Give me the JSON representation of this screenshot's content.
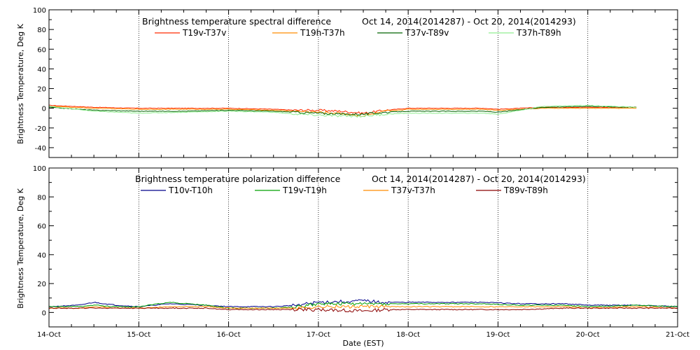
{
  "chart_data": [
    {
      "type": "line",
      "title": "Brightness temperature spectral difference",
      "date_range": "Oct 14, 2014(2014287) - Oct 20, 2014(2014293)",
      "ylabel": "Brightness Temperature, Deg K",
      "xlabel": "",
      "ylim": [
        -50,
        100
      ],
      "yticks": [
        -40,
        -20,
        0,
        20,
        40,
        60,
        80,
        100
      ],
      "xlim": [
        "2014-10-14",
        "2014-10-21"
      ],
      "grid": "vertical dotted lines at day boundaries",
      "legend_position": "top",
      "series": [
        {
          "name": "T19v-T37v",
          "color": "#ff2a00",
          "x": [
            "2014-10-14T00:00",
            "2014-10-14T12:00",
            "2014-10-15T00:00",
            "2014-10-15T12:00",
            "2014-10-16T00:00",
            "2014-10-16T12:00",
            "2014-10-16T18:00",
            "2014-10-17T00:00",
            "2014-10-17T06:00",
            "2014-10-17T12:00",
            "2014-10-17T18:00",
            "2014-10-18T00:00",
            "2014-10-18T12:00",
            "2014-10-18T20:00",
            "2014-10-19T00:00",
            "2014-10-19T12:00",
            "2014-10-20T00:00",
            "2014-10-20T13:00"
          ],
          "y": [
            3,
            1,
            0,
            0,
            0,
            -1,
            -2,
            -2,
            -3,
            -5,
            -2,
            0,
            0,
            0,
            -1,
            1,
            1,
            1
          ]
        },
        {
          "name": "T19h-T37h",
          "color": "#ff8c00",
          "x": [
            "2014-10-14T00:00",
            "2014-10-14T12:00",
            "2014-10-15T00:00",
            "2014-10-15T12:00",
            "2014-10-16T00:00",
            "2014-10-16T12:00",
            "2014-10-16T18:00",
            "2014-10-17T00:00",
            "2014-10-17T06:00",
            "2014-10-17T12:00",
            "2014-10-17T18:00",
            "2014-10-18T00:00",
            "2014-10-18T12:00",
            "2014-10-18T20:00",
            "2014-10-19T00:00",
            "2014-10-19T12:00",
            "2014-10-20T00:00",
            "2014-10-20T13:00"
          ],
          "y": [
            2,
            0,
            -1,
            -1,
            -1,
            -2,
            -3,
            -4,
            -5,
            -8,
            -3,
            -1,
            -1,
            -1,
            -2,
            0,
            0,
            0
          ]
        },
        {
          "name": "T37v-T89v",
          "color": "#006400",
          "x": [
            "2014-10-14T00:00",
            "2014-10-14T12:00",
            "2014-10-15T00:00",
            "2014-10-15T12:00",
            "2014-10-16T00:00",
            "2014-10-16T12:00",
            "2014-10-16T18:00",
            "2014-10-17T00:00",
            "2014-10-17T06:00",
            "2014-10-17T12:00",
            "2014-10-17T18:00",
            "2014-10-18T00:00",
            "2014-10-18T12:00",
            "2014-10-18T20:00",
            "2014-10-19T00:00",
            "2014-10-19T12:00",
            "2014-10-20T00:00",
            "2014-10-20T13:00"
          ],
          "y": [
            1,
            -2,
            -3,
            -3,
            -2,
            -3,
            -4,
            -5,
            -6,
            -6,
            -4,
            -3,
            -3,
            -3,
            -4,
            1,
            2,
            1
          ]
        },
        {
          "name": "T37h-T89h",
          "color": "#90ee90",
          "x": [
            "2014-10-14T00:00",
            "2014-10-14T12:00",
            "2014-10-15T00:00",
            "2014-10-15T12:00",
            "2014-10-16T00:00",
            "2014-10-16T12:00",
            "2014-10-16T18:00",
            "2014-10-17T00:00",
            "2014-10-17T06:00",
            "2014-10-17T12:00",
            "2014-10-17T18:00",
            "2014-10-18T00:00",
            "2014-10-18T12:00",
            "2014-10-18T20:00",
            "2014-10-19T00:00",
            "2014-10-19T12:00",
            "2014-10-20T00:00",
            "2014-10-20T13:00"
          ],
          "y": [
            2,
            -3,
            -5,
            -4,
            -3,
            -4,
            -6,
            -7,
            -8,
            -8,
            -6,
            -5,
            -5,
            -5,
            -6,
            2,
            3,
            1
          ]
        }
      ]
    },
    {
      "type": "line",
      "title": "Brightness temperature polarization difference",
      "date_range": "Oct 14, 2014(2014287) - Oct 20, 2014(2014293)",
      "ylabel": "Brightness Temperature, Deg K",
      "xlabel": "Date (EST)",
      "ylim": [
        -10,
        100
      ],
      "yticks": [
        0,
        20,
        40,
        60,
        80,
        100
      ],
      "xlim": [
        "2014-10-14",
        "2014-10-21"
      ],
      "categories": [
        "14-Oct",
        "15-Oct",
        "16-Oct",
        "17-Oct",
        "18-Oct",
        "19-Oct",
        "20-Oct",
        "21-Oct"
      ],
      "grid": "vertical dotted lines at day boundaries",
      "legend_position": "top",
      "series": [
        {
          "name": "T10v-T10h",
          "color": "#00008b",
          "x": [
            "2014-10-14T00:00",
            "2014-10-14T08:00",
            "2014-10-14T12:00",
            "2014-10-14T18:00",
            "2014-10-15T00:00",
            "2014-10-15T08:00",
            "2014-10-15T18:00",
            "2014-10-16T00:00",
            "2014-10-16T12:00",
            "2014-10-16T18:00",
            "2014-10-17T00:00",
            "2014-10-17T12:00",
            "2014-10-17T18:00",
            "2014-10-18T00:00",
            "2014-10-18T12:00",
            "2014-10-18T20:00",
            "2014-10-19T06:00",
            "2014-10-19T18:00",
            "2014-10-20T00:00",
            "2014-10-20T13:00",
            "2014-10-21T00:00"
          ],
          "y": [
            4,
            5,
            7,
            5,
            4,
            6,
            5,
            4,
            4,
            5,
            7,
            8,
            7,
            7,
            7,
            7,
            6,
            6,
            5,
            5,
            4
          ]
        },
        {
          "name": "T19v-T19h",
          "color": "#00a000",
          "x": [
            "2014-10-14T00:00",
            "2014-10-14T08:00",
            "2014-10-14T12:00",
            "2014-10-14T18:00",
            "2014-10-15T00:00",
            "2014-10-15T08:00",
            "2014-10-15T18:00",
            "2014-10-16T00:00",
            "2014-10-16T12:00",
            "2014-10-16T18:00",
            "2014-10-17T00:00",
            "2014-10-17T12:00",
            "2014-10-17T18:00",
            "2014-10-18T00:00",
            "2014-10-18T12:00",
            "2014-10-18T20:00",
            "2014-10-19T06:00",
            "2014-10-19T18:00",
            "2014-10-20T00:00",
            "2014-10-20T13:00",
            "2014-10-21T00:00"
          ],
          "y": [
            4,
            4,
            5,
            4,
            4,
            7,
            5,
            3,
            3,
            4,
            6,
            6,
            6,
            6,
            6,
            6,
            5,
            5,
            4,
            5,
            4
          ]
        },
        {
          "name": "T37v-T37h",
          "color": "#ff8c00",
          "x": [
            "2014-10-14T00:00",
            "2014-10-14T08:00",
            "2014-10-14T12:00",
            "2014-10-14T18:00",
            "2014-10-15T00:00",
            "2014-10-15T08:00",
            "2014-10-15T18:00",
            "2014-10-16T00:00",
            "2014-10-16T12:00",
            "2014-10-16T18:00",
            "2014-10-17T00:00",
            "2014-10-17T12:00",
            "2014-10-17T18:00",
            "2014-10-18T00:00",
            "2014-10-18T12:00",
            "2014-10-18T20:00",
            "2014-10-19T06:00",
            "2014-10-19T18:00",
            "2014-10-20T00:00",
            "2014-10-20T13:00",
            "2014-10-21T00:00"
          ],
          "y": [
            3,
            3,
            4,
            3,
            3,
            4,
            4,
            3,
            3,
            3,
            4,
            4,
            4,
            4,
            4,
            4,
            4,
            4,
            3,
            4,
            3
          ]
        },
        {
          "name": "T89v-T89h",
          "color": "#8b0000",
          "x": [
            "2014-10-14T00:00",
            "2014-10-14T08:00",
            "2014-10-14T12:00",
            "2014-10-14T18:00",
            "2014-10-15T00:00",
            "2014-10-15T08:00",
            "2014-10-15T18:00",
            "2014-10-16T00:00",
            "2014-10-16T12:00",
            "2014-10-16T18:00",
            "2014-10-17T00:00",
            "2014-10-17T12:00",
            "2014-10-17T18:00",
            "2014-10-18T00:00",
            "2014-10-18T12:00",
            "2014-10-18T20:00",
            "2014-10-19T06:00",
            "2014-10-19T18:00",
            "2014-10-20T00:00",
            "2014-10-20T13:00",
            "2014-10-21T00:00"
          ],
          "y": [
            3,
            3,
            3,
            3,
            3,
            3,
            3,
            2,
            2,
            2,
            2,
            1,
            2,
            2,
            2,
            2,
            2,
            3,
            3,
            3,
            3
          ]
        }
      ]
    }
  ]
}
